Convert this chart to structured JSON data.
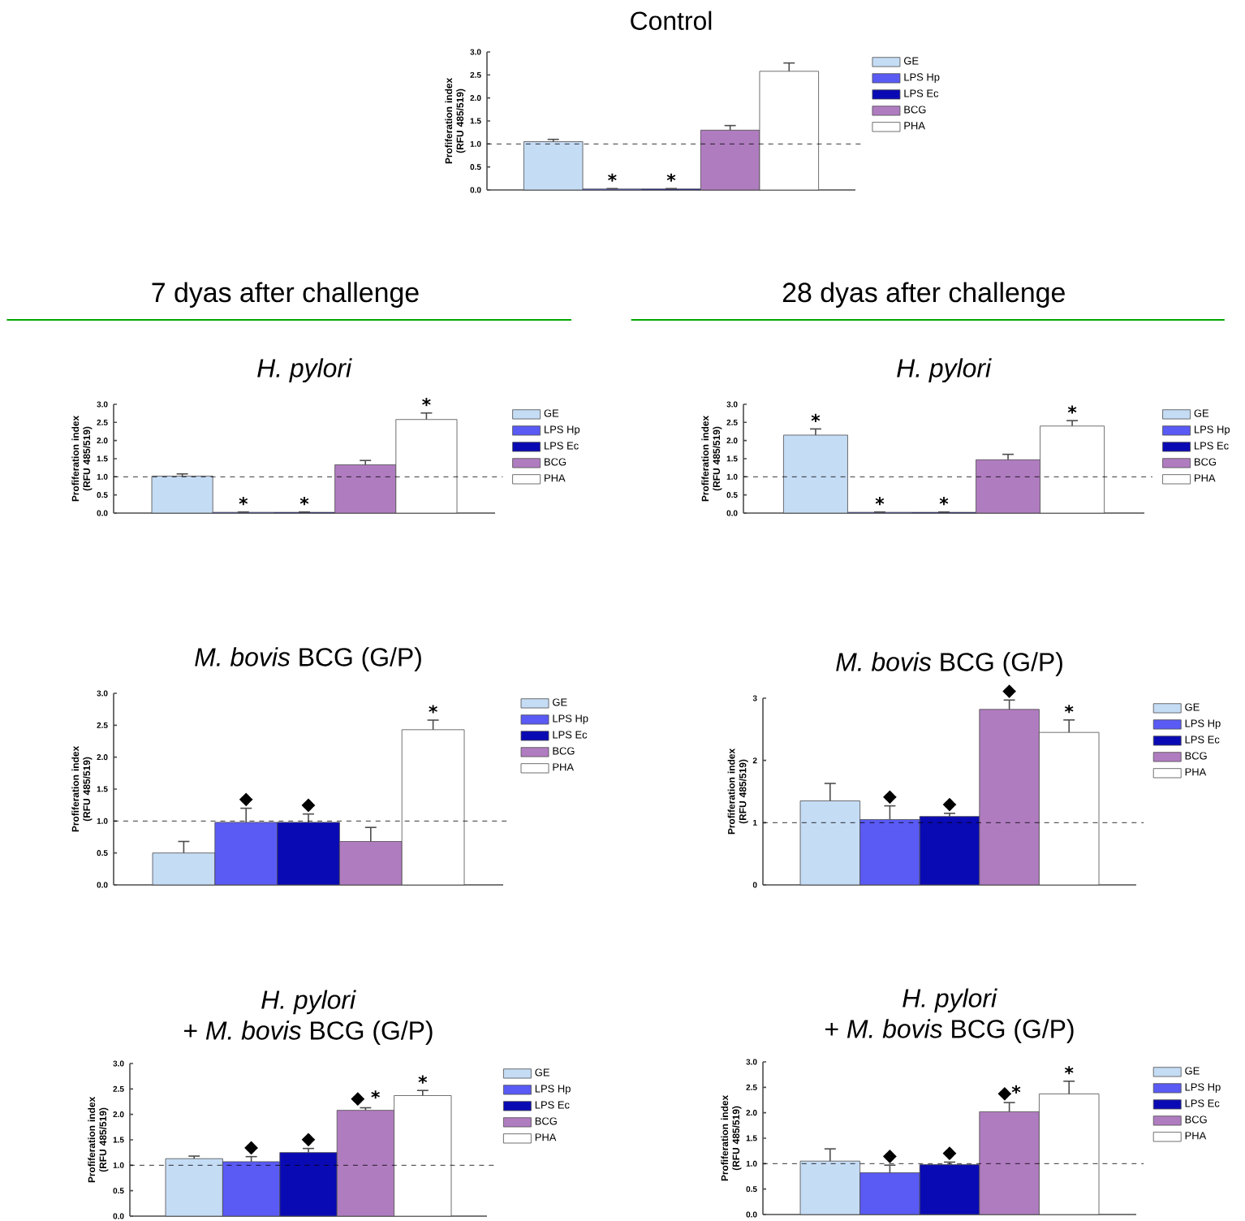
{
  "chart_data": [
    {
      "type": "bar",
      "title": "Control",
      "ylabel": "Profiferation index (RFU 485/519)",
      "categories": [
        null
      ],
      "ylim": [
        0,
        3
      ],
      "yticks": [
        {
          "value": 0,
          "label": "0.0"
        },
        {
          "value": 0.5,
          "label": "0.5"
        },
        {
          "value": 1,
          "label": "1.0"
        },
        {
          "value": 1.5,
          "label": "1.5"
        },
        {
          "value": 2,
          "label": "2.0"
        },
        {
          "value": 2.5,
          "label": "2.5"
        },
        {
          "value": 3,
          "label": "3.0"
        }
      ],
      "legend": "right",
      "ref_lines": [
        {
          "axis": "y",
          "value": 1,
          "line_style": "dashed"
        }
      ],
      "series": [
        {
          "name": "GE",
          "color": "#c5dcf5",
          "values": [
            1.05
          ],
          "errors": [
            0.05
          ]
        },
        {
          "name": "LPS Hp",
          "color": "#5a5af5",
          "values": [
            0.02
          ],
          "errors": [
            0.01
          ],
          "value_labels": [
            "*"
          ]
        },
        {
          "name": "LPS Ec",
          "color": "#0a0ab4",
          "values": [
            0.02
          ],
          "errors": [
            0.01
          ],
          "value_labels": [
            "*"
          ]
        },
        {
          "name": "BCG",
          "color": "#b07cc0",
          "values": [
            1.3
          ],
          "errors": [
            0.1
          ]
        },
        {
          "name": "PHA",
          "color": "#ffffff",
          "values": [
            2.58
          ],
          "errors": [
            0.18
          ]
        }
      ]
    },
    {
      "type": "bar",
      "title": "*H. pylori*",
      "annotations": [
        "7 dyas after challenge"
      ],
      "ylabel": "Profiferation index (RFU 485/519)",
      "categories": [
        null
      ],
      "ylim": [
        0,
        3
      ],
      "yticks": [
        {
          "value": 0,
          "label": "0.0"
        },
        {
          "value": 0.5,
          "label": "0.5"
        },
        {
          "value": 1,
          "label": "1.0"
        },
        {
          "value": 1.5,
          "label": "1.5"
        },
        {
          "value": 2,
          "label": "2.0"
        },
        {
          "value": 2.5,
          "label": "2.5"
        },
        {
          "value": 3,
          "label": "3.0"
        }
      ],
      "legend": "right",
      "ref_lines": [
        {
          "axis": "y",
          "value": 1,
          "line_style": "dashed"
        }
      ],
      "series": [
        {
          "name": "GE",
          "color": "#c5dcf5",
          "values": [
            1.02
          ],
          "errors": [
            0.06
          ]
        },
        {
          "name": "LPS Hp",
          "color": "#5a5af5",
          "values": [
            0.02
          ],
          "errors": [
            0.01
          ],
          "value_labels": [
            "*"
          ]
        },
        {
          "name": "LPS Ec",
          "color": "#0a0ab4",
          "values": [
            0.02
          ],
          "errors": [
            0.01
          ],
          "value_labels": [
            "*"
          ]
        },
        {
          "name": "BCG",
          "color": "#b07cc0",
          "values": [
            1.33
          ],
          "errors": [
            0.12
          ]
        },
        {
          "name": "PHA",
          "color": "#ffffff",
          "values": [
            2.58
          ],
          "errors": [
            0.18
          ],
          "value_labels": [
            "*"
          ]
        }
      ]
    },
    {
      "type": "bar",
      "title": "*H. pylori*",
      "annotations": [
        "28 dyas after challenge"
      ],
      "ylabel": "Profiferation index (RFU 485/519)",
      "categories": [
        null
      ],
      "ylim": [
        0,
        3
      ],
      "yticks": [
        {
          "value": 0,
          "label": "0.0"
        },
        {
          "value": 0.5,
          "label": "0.5"
        },
        {
          "value": 1,
          "label": "1.0"
        },
        {
          "value": 1.5,
          "label": "1.5"
        },
        {
          "value": 2,
          "label": "2.0"
        },
        {
          "value": 2.5,
          "label": "2.5"
        },
        {
          "value": 3,
          "label": "3.0"
        }
      ],
      "legend": "right",
      "ref_lines": [
        {
          "axis": "y",
          "value": 1,
          "line_style": "dashed"
        }
      ],
      "series": [
        {
          "name": "GE",
          "color": "#c5dcf5",
          "values": [
            2.15
          ],
          "errors": [
            0.17
          ],
          "value_labels": [
            "*"
          ]
        },
        {
          "name": "LPS Hp",
          "color": "#5a5af5",
          "values": [
            0.02
          ],
          "errors": [
            0.01
          ],
          "value_labels": [
            "*"
          ]
        },
        {
          "name": "LPS Ec",
          "color": "#0a0ab4",
          "values": [
            0.02
          ],
          "errors": [
            0.01
          ],
          "value_labels": [
            "*"
          ]
        },
        {
          "name": "BCG",
          "color": "#b07cc0",
          "values": [
            1.47
          ],
          "errors": [
            0.15
          ]
        },
        {
          "name": "PHA",
          "color": "#ffffff",
          "values": [
            2.4
          ],
          "errors": [
            0.15
          ],
          "value_labels": [
            "*"
          ]
        }
      ]
    },
    {
      "type": "bar",
      "title": "*M. bovis* BCG (G/P)",
      "ylabel": "Profiferation index (RFU 485/519)",
      "categories": [
        null
      ],
      "ylim": [
        0,
        3
      ],
      "yticks": [
        {
          "value": 0,
          "label": "0.0"
        },
        {
          "value": 0.5,
          "label": "0.5"
        },
        {
          "value": 1,
          "label": "1.0"
        },
        {
          "value": 1.5,
          "label": "1.5"
        },
        {
          "value": 2,
          "label": "2.0"
        },
        {
          "value": 2.5,
          "label": "2.5"
        },
        {
          "value": 3,
          "label": "3.0"
        }
      ],
      "legend": "right",
      "ref_lines": [
        {
          "axis": "y",
          "value": 1,
          "line_style": "dashed"
        }
      ],
      "series": [
        {
          "name": "GE",
          "color": "#c5dcf5",
          "values": [
            0.5
          ],
          "errors": [
            0.18
          ]
        },
        {
          "name": "LPS Hp",
          "color": "#5a5af5",
          "values": [
            0.98
          ],
          "errors": [
            0.22
          ],
          "value_labels": [
            "◆"
          ]
        },
        {
          "name": "LPS Ec",
          "color": "#0a0ab4",
          "values": [
            0.98
          ],
          "errors": [
            0.13
          ],
          "value_labels": [
            "◆"
          ]
        },
        {
          "name": "BCG",
          "color": "#b07cc0",
          "values": [
            0.68
          ],
          "errors": [
            0.22
          ]
        },
        {
          "name": "PHA",
          "color": "#ffffff",
          "values": [
            2.43
          ],
          "errors": [
            0.15
          ],
          "value_labels": [
            "*"
          ]
        }
      ]
    },
    {
      "type": "bar",
      "title": "*M. bovis* BCG (G/P)",
      "ylabel": "Profiferation index (RFU 485/519)",
      "categories": [
        null
      ],
      "ylim": [
        0,
        3
      ],
      "yticks": [
        0,
        1,
        2,
        3
      ],
      "legend": "right",
      "ref_lines": [
        {
          "axis": "y",
          "value": 1,
          "line_style": "dashed"
        }
      ],
      "series": [
        {
          "name": "GE",
          "color": "#c5dcf5",
          "values": [
            1.35
          ],
          "errors": [
            0.28
          ]
        },
        {
          "name": "LPS Hp",
          "color": "#5a5af5",
          "values": [
            1.05
          ],
          "errors": [
            0.22
          ],
          "value_labels": [
            "◆"
          ]
        },
        {
          "name": "LPS Ec",
          "color": "#0a0ab4",
          "values": [
            1.1
          ],
          "errors": [
            0.05
          ],
          "value_labels": [
            "◆"
          ]
        },
        {
          "name": "BCG",
          "color": "#b07cc0",
          "values": [
            2.82
          ],
          "errors": [
            0.15
          ],
          "value_labels": [
            "◆"
          ]
        },
        {
          "name": "PHA",
          "color": "#ffffff",
          "values": [
            2.45
          ],
          "errors": [
            0.2
          ],
          "value_labels": [
            "*"
          ]
        }
      ]
    },
    {
      "type": "bar",
      "title": "*H. pylori*",
      "subtitle": "+ *M. bovis* BCG (G/P)",
      "ylabel": "Profiferation index (RFU 485/519)",
      "categories": [
        null
      ],
      "ylim": [
        0,
        3
      ],
      "yticks": [
        {
          "value": 0,
          "label": "0.0"
        },
        {
          "value": 0.5,
          "label": "0.5"
        },
        {
          "value": 1,
          "label": "1.0"
        },
        {
          "value": 1.5,
          "label": "1.5"
        },
        {
          "value": 2,
          "label": "2.0"
        },
        {
          "value": 2.5,
          "label": "2.5"
        },
        {
          "value": 3,
          "label": "3.0"
        }
      ],
      "legend": "right",
      "ref_lines": [
        {
          "axis": "y",
          "value": 1,
          "line_style": "dashed"
        }
      ],
      "series": [
        {
          "name": "GE",
          "color": "#c5dcf5",
          "values": [
            1.13
          ],
          "errors": [
            0.05
          ]
        },
        {
          "name": "LPS Hp",
          "color": "#5a5af5",
          "values": [
            1.07
          ],
          "errors": [
            0.1
          ],
          "value_labels": [
            "◆"
          ]
        },
        {
          "name": "LPS Ec",
          "color": "#0a0ab4",
          "values": [
            1.25
          ],
          "errors": [
            0.08
          ],
          "value_labels": [
            "◆"
          ]
        },
        {
          "name": "BCG",
          "color": "#b07cc0",
          "values": [
            2.08
          ],
          "errors": [
            0.05
          ],
          "value_labels": [
            "◆ *"
          ]
        },
        {
          "name": "PHA",
          "color": "#ffffff",
          "values": [
            2.37
          ],
          "errors": [
            0.1
          ],
          "value_labels": [
            "*"
          ]
        }
      ]
    },
    {
      "type": "bar",
      "title": "*H. pylori*",
      "subtitle": "+ *M. bovis* BCG (G/P)",
      "ylabel": "Profiferation index (RFU 485/519)",
      "categories": [
        null
      ],
      "ylim": [
        0,
        3
      ],
      "yticks": [
        {
          "value": 0,
          "label": "0.0"
        },
        {
          "value": 0.5,
          "label": "0.5"
        },
        {
          "value": 1,
          "label": "1.0"
        },
        {
          "value": 1.5,
          "label": "1.5"
        },
        {
          "value": 2,
          "label": "2.0"
        },
        {
          "value": 2.5,
          "label": "2.5"
        },
        {
          "value": 3,
          "label": "3.0"
        }
      ],
      "legend": "right",
      "ref_lines": [
        {
          "axis": "y",
          "value": 1,
          "line_style": "dashed"
        }
      ],
      "series": [
        {
          "name": "GE",
          "color": "#c5dcf5",
          "values": [
            1.05
          ],
          "errors": [
            0.24
          ]
        },
        {
          "name": "LPS Hp",
          "color": "#5a5af5",
          "values": [
            0.82
          ],
          "errors": [
            0.15
          ],
          "value_labels": [
            "◆"
          ]
        },
        {
          "name": "LPS Ec",
          "color": "#0a0ab4",
          "values": [
            0.98
          ],
          "errors": [
            0.05
          ],
          "value_labels": [
            "◆"
          ]
        },
        {
          "name": "BCG",
          "color": "#b07cc0",
          "values": [
            2.02
          ],
          "errors": [
            0.18
          ],
          "value_labels": [
            "◆*"
          ]
        },
        {
          "name": "PHA",
          "color": "#ffffff",
          "values": [
            2.37
          ],
          "errors": [
            0.25
          ],
          "value_labels": [
            "*"
          ]
        }
      ]
    }
  ]
}
